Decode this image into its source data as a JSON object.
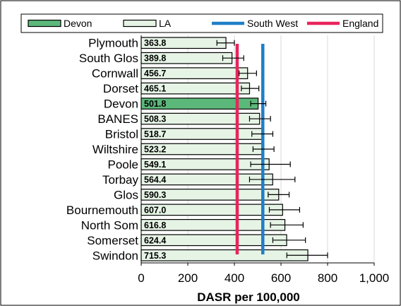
{
  "chart_data": {
    "type": "bar",
    "orientation": "horizontal",
    "categories": [
      "Plymouth",
      "South Glos",
      "Cornwall",
      "Dorset",
      "Devon",
      "BANES",
      "Bristol",
      "Wiltshire",
      "Poole",
      "Torbay",
      "Glos",
      "Bournemouth",
      "North Som",
      "Somerset",
      "Swindon"
    ],
    "values": [
      363.8,
      389.8,
      456.7,
      465.1,
      501.8,
      508.3,
      518.7,
      523.2,
      549.1,
      564.4,
      590.3,
      607.0,
      616.8,
      624.4,
      715.3
    ],
    "value_labels": [
      "363.8",
      "389.8",
      "456.7",
      "465.1",
      "501.8",
      "508.3",
      "518.7",
      "523.2",
      "549.1",
      "564.4",
      "590.3",
      "607.0",
      "616.8",
      "624.4",
      "715.3"
    ],
    "error_low": [
      325,
      350,
      420,
      430,
      470,
      465,
      475,
      480,
      470,
      465,
      545,
      550,
      555,
      565,
      625
    ],
    "error_high": [
      400,
      440,
      495,
      505,
      535,
      555,
      565,
      570,
      640,
      660,
      635,
      680,
      695,
      705,
      800
    ],
    "highlight_category": "Devon",
    "reference_lines": [
      {
        "name": "South West",
        "value": 522,
        "color": "#1f7fc8"
      },
      {
        "name": "England",
        "value": 412,
        "color": "#e8245c"
      }
    ],
    "legend": [
      {
        "name": "Devon",
        "kind": "box",
        "fill": "#5cb87a"
      },
      {
        "name": "LA",
        "kind": "box",
        "fill": "#e6f4e6"
      },
      {
        "name": "South West",
        "kind": "line",
        "color": "#1f7fc8"
      },
      {
        "name": "England",
        "kind": "line",
        "color": "#e8245c"
      }
    ],
    "legend_position": "top",
    "xlabel": "DASR per 100,000",
    "xlim": [
      0,
      1000
    ],
    "x_ticks": [
      0,
      200,
      400,
      600,
      800,
      1000
    ],
    "x_tick_labels": [
      "0",
      "200",
      "400",
      "600",
      "800",
      "1,000"
    ],
    "grid": "vertical",
    "colors": {
      "bar": "#e6f4e6",
      "highlight": "#5cb87a",
      "grid": "#d9d9d9",
      "error": "#000000"
    }
  }
}
